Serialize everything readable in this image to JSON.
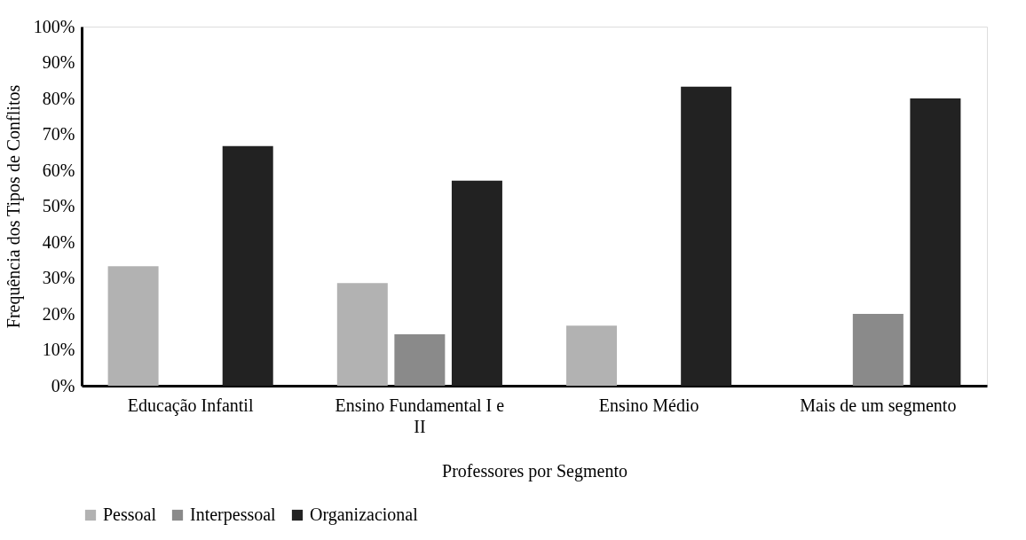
{
  "chart_data": {
    "type": "bar",
    "xlabel": "Professores por Segmento",
    "ylabel": "Frequência dos Tipos de Conflitos",
    "categories": [
      "Educação Infantil",
      "Ensino Fundamental I e II",
      "Ensino Médio",
      "Mais de um segmento"
    ],
    "series": [
      {
        "name": "Pessoal",
        "color": "#b2b2b2",
        "values": [
          33.3,
          28.6,
          16.7,
          0
        ]
      },
      {
        "name": "Interpessoal",
        "color": "#8a8a8a",
        "values": [
          0,
          14.3,
          0,
          20.0
        ]
      },
      {
        "name": "Organizacional",
        "color": "#222222",
        "values": [
          66.7,
          57.1,
          83.3,
          80.0
        ]
      }
    ],
    "ylim": [
      0,
      100
    ],
    "yticks": [
      {
        "value": 0,
        "label": "0%"
      },
      {
        "value": 10,
        "label": "10%"
      },
      {
        "value": 20,
        "label": "20%"
      },
      {
        "value": 30,
        "label": "30%"
      },
      {
        "value": 40,
        "label": "40%"
      },
      {
        "value": 50,
        "label": "50%"
      },
      {
        "value": 60,
        "label": "60%"
      },
      {
        "value": 70,
        "label": "70%"
      },
      {
        "value": 80,
        "label": "80%"
      },
      {
        "value": 90,
        "label": "90%"
      },
      {
        "value": 100,
        "label": "100%"
      }
    ],
    "grid": false,
    "legend": "bottom"
  }
}
